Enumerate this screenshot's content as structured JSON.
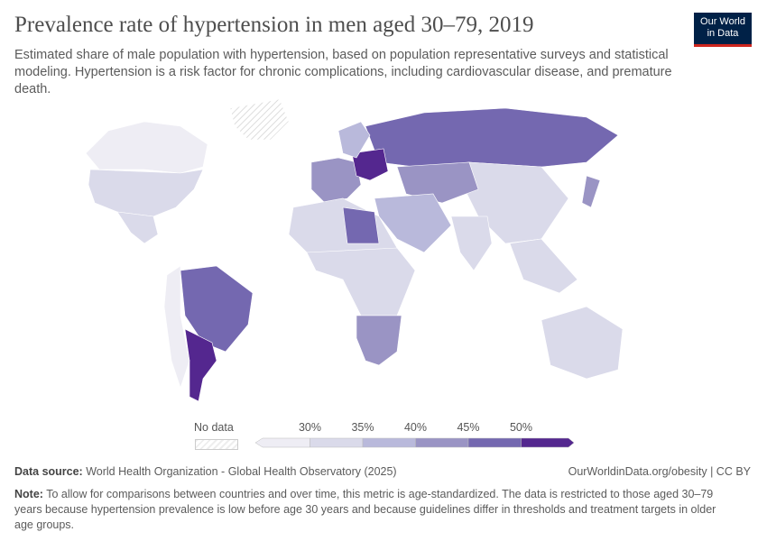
{
  "header": {
    "title": "Prevalence rate of hypertension in men aged 30–79, 2019",
    "subtitle": "Estimated share of male population with hypertension, based on population representative surveys and statistical modeling. Hypertension is a risk factor for chronic complications, including cardiovascular disease, and premature death.",
    "logo_line1": "Our World",
    "logo_line2": "in Data"
  },
  "legend": {
    "no_data_label": "No data",
    "ticks": [
      "30%",
      "35%",
      "40%",
      "45%",
      "50%"
    ],
    "colors": [
      "#eeedf4",
      "#dadaea",
      "#b9b9db",
      "#9a94c4",
      "#7468b0",
      "#54278f"
    ]
  },
  "map": {
    "regions": [
      {
        "name": "Canada",
        "bucket": 0
      },
      {
        "name": "United States",
        "bucket": 1
      },
      {
        "name": "Mexico",
        "bucket": 1
      },
      {
        "name": "Greenland",
        "bucket": -1
      },
      {
        "name": "Brazil",
        "bucket": 4
      },
      {
        "name": "Argentina",
        "bucket": 5
      },
      {
        "name": "Andes",
        "bucket": 0
      },
      {
        "name": "Russia",
        "bucket": 4
      },
      {
        "name": "Europe",
        "bucket": 3
      },
      {
        "name": "Eastern Europe",
        "bucket": 5
      },
      {
        "name": "China",
        "bucket": 1
      },
      {
        "name": "Central Asia",
        "bucket": 3
      },
      {
        "name": "India",
        "bucket": 1
      },
      {
        "name": "Middle East",
        "bucket": 2
      },
      {
        "name": "North Africa",
        "bucket": 1
      },
      {
        "name": "Libya",
        "bucket": 4
      },
      {
        "name": "Central Africa",
        "bucket": 1
      },
      {
        "name": "Southern Africa",
        "bucket": 3
      },
      {
        "name": "Southeast Asia",
        "bucket": 1
      },
      {
        "name": "Australia",
        "bucket": 1
      },
      {
        "name": "Japan",
        "bucket": 3
      },
      {
        "name": "Scandinavia",
        "bucket": 2
      }
    ]
  },
  "footer": {
    "source_label": "Data source:",
    "source": "World Health Organization - Global Health Observatory (2025)",
    "url": "OurWorldinData.org/obesity | CC BY",
    "note_label": "Note:",
    "note": "To allow for comparisons between countries and over time, this metric is age-standardized. The data is restricted to those aged 30–79 years because hypertension prevalence is low before age 30 years and because guidelines differ in thresholds and treatment targets in older age groups."
  }
}
